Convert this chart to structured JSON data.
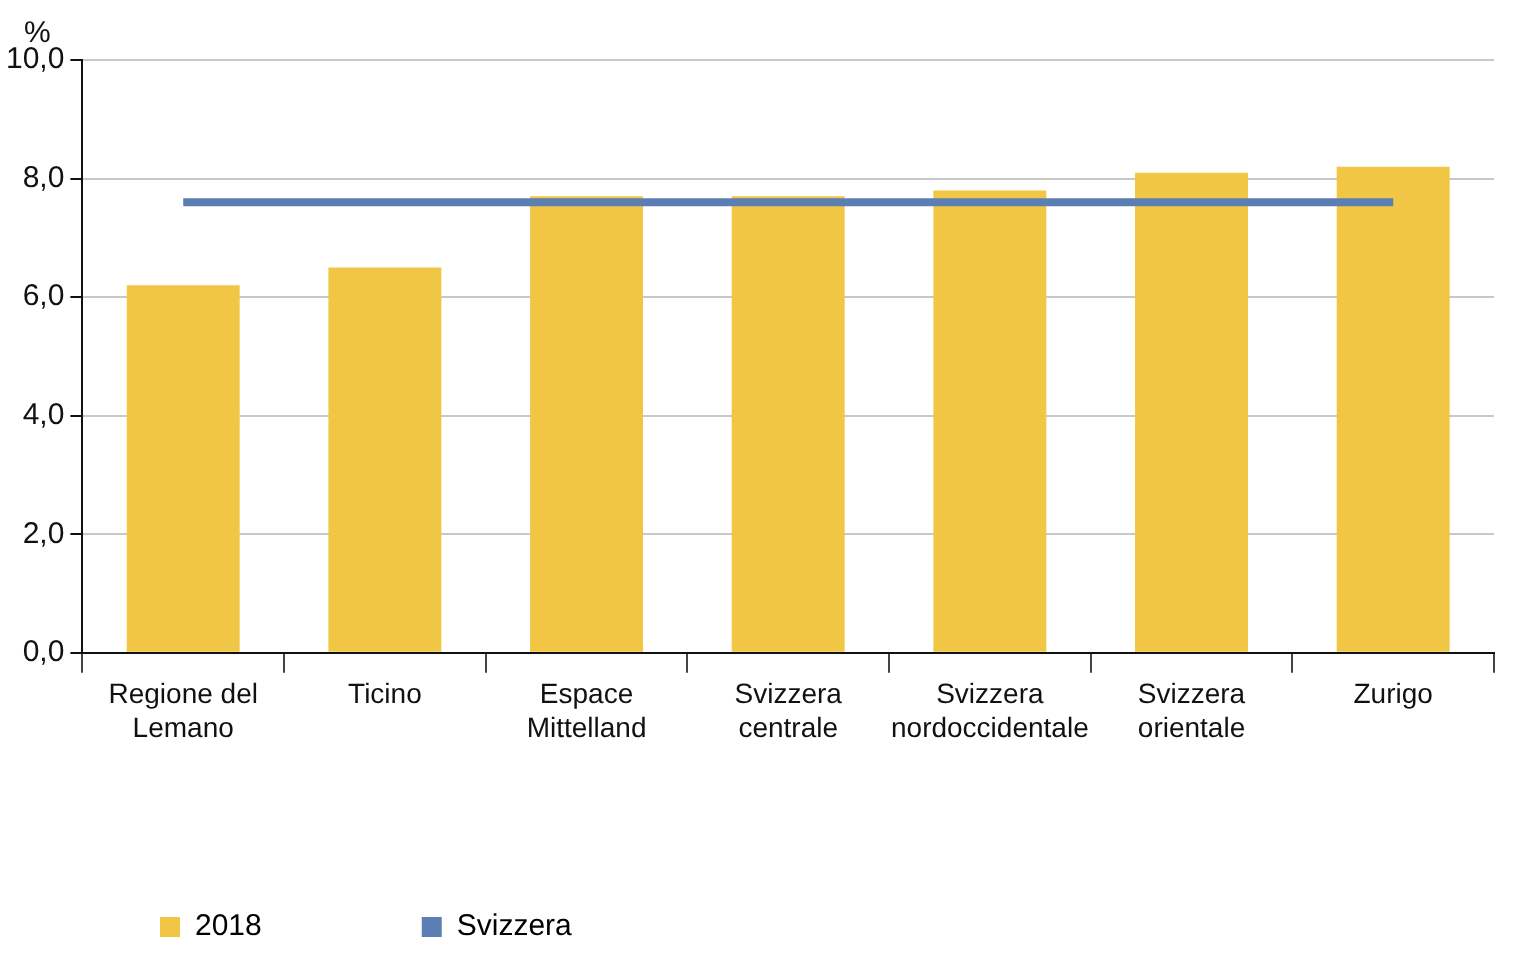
{
  "chart_data": {
    "type": "bar",
    "ylabel": "%",
    "categories": [
      "Regione del Lemano",
      "Ticino",
      "Espace Mittelland",
      "Svizzera centrale",
      "Svizzera nordoccidentale",
      "Svizzera orientale",
      "Zurigo"
    ],
    "series": [
      {
        "name": "2018",
        "color": "#f1c644",
        "values": [
          6.2,
          6.5,
          7.7,
          7.7,
          7.8,
          8.1,
          8.2
        ]
      },
      {
        "name": "Svizzera",
        "type": "line",
        "color": "#5b7fb2",
        "values": [
          7.6,
          7.6,
          7.6,
          7.6,
          7.6,
          7.6,
          7.6
        ]
      }
    ],
    "ylim": [
      0,
      10
    ],
    "yticks": [
      {
        "value": 0,
        "label": "0,0"
      },
      {
        "value": 2,
        "label": "2,0"
      },
      {
        "value": 4,
        "label": "4,0"
      },
      {
        "value": 6,
        "label": "6,0"
      },
      {
        "value": 8,
        "label": "8,0"
      },
      {
        "value": 10,
        "label": "10,0"
      }
    ],
    "grid": "y",
    "legend": "bottom left",
    "marker": "none",
    "line_style": "solid"
  }
}
